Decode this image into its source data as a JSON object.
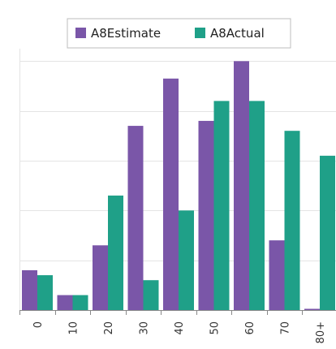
{
  "chart_data": {
    "type": "bar",
    "categories": [
      "0",
      "10",
      "20",
      "30",
      "40",
      "50",
      "60",
      "70",
      "80+"
    ],
    "series": [
      {
        "name": "A8Estimate",
        "color": "#7a56a8",
        "values": [
          1.6,
          0.6,
          2.6,
          7.4,
          9.3,
          7.6,
          10.0,
          2.8,
          0.0
        ]
      },
      {
        "name": "A8Actual",
        "color": "#1fa088",
        "values": [
          1.4,
          0.6,
          4.6,
          1.2,
          4.0,
          8.4,
          8.4,
          7.2,
          6.2
        ]
      }
    ],
    "ylim": [
      0,
      10.5
    ],
    "grid": true,
    "y_tick_labels_visible": false,
    "legend_position": "top-center",
    "colors": {
      "gridline": "#e4e4e4",
      "axis": "#888888",
      "legend_border": "#bdbdbd"
    }
  }
}
